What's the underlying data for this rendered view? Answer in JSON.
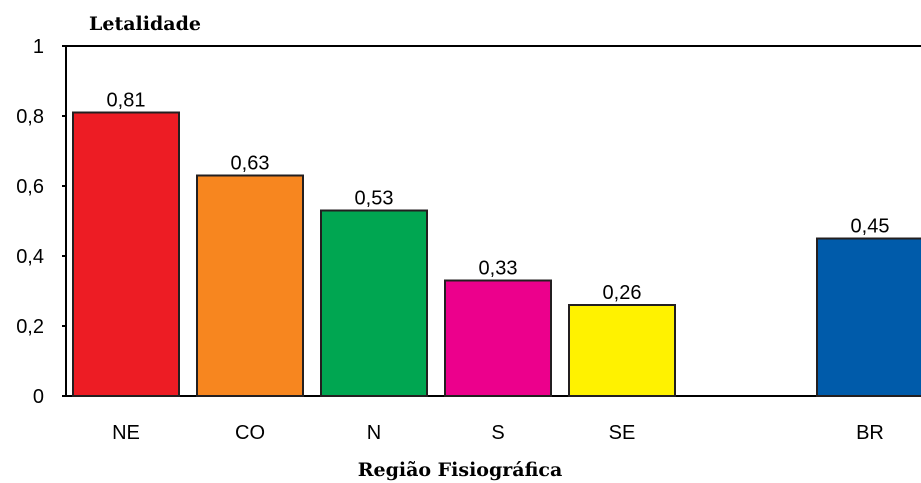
{
  "chart_data": {
    "type": "bar",
    "ylabel": "Letalidade",
    "xlabel": "Região Fisiográfica",
    "categories": [
      "NE",
      "CO",
      "N",
      "S",
      "SE",
      "BR"
    ],
    "values": [
      0.81,
      0.63,
      0.53,
      0.33,
      0.26,
      0.45
    ],
    "value_labels": [
      "0,81",
      "0,63",
      "0,53",
      "0,33",
      "0,26",
      "0,45"
    ],
    "colors": [
      "#ed1c24",
      "#f7861f",
      "#00a651",
      "#ec008c",
      "#fff200",
      "#005baa"
    ],
    "ylim": [
      0,
      1
    ],
    "yticks": [
      0,
      0.2,
      0.4,
      0.6,
      0.8,
      1
    ],
    "ytick_labels": [
      "0",
      "0,2",
      "0,4",
      "0,6",
      "0,8",
      "1"
    ],
    "grid": false,
    "legend": "none"
  }
}
